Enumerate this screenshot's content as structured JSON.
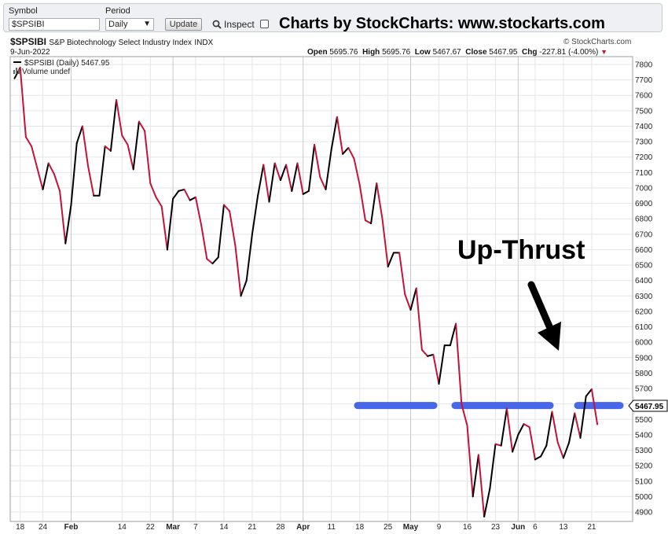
{
  "toolbar": {
    "symbol_label": "Symbol",
    "symbol_value": "$SPSIBI",
    "period_label": "Period",
    "period_value": "Daily",
    "update_label": "Update",
    "inspect_label": "Inspect",
    "banner": "Charts by StockCharts:  www.stockarts.com"
  },
  "header": {
    "ticker": "$SPSIBI",
    "name": "S&P Biotechnology Select Industry Index",
    "exchange": "INDX",
    "date": "9-Jun-2022",
    "copyright": "© StockCharts.com",
    "open_label": "Open",
    "open": "5695.76",
    "high_label": "High",
    "high": "5695.76",
    "low_label": "Low",
    "low": "5467.67",
    "close_label": "Close",
    "close": "5467.95",
    "chg_label": "Chg",
    "chg": "-227.81 (-4.00%)",
    "legend_series": "$SPSIBI (Daily) 5467.95",
    "legend_volume": "Volume undef"
  },
  "chart_data": {
    "type": "line",
    "title": "$SPSIBI S&P Biotechnology Select Industry Index INDX",
    "ylim": [
      4850,
      7850
    ],
    "yticks": [
      "7800",
      "7700",
      "7600",
      "7500",
      "7400",
      "7300",
      "7200",
      "7100",
      "7000",
      "6900",
      "6800",
      "6700",
      "6600",
      "6500",
      "6400",
      "6300",
      "6200",
      "6100",
      "6000",
      "5900",
      "5800",
      "5700",
      "5600",
      "5500",
      "5400",
      "5300",
      "5200",
      "5100",
      "5000",
      "4900"
    ],
    "xticks": [
      {
        "label": "18",
        "index": 1,
        "month": false
      },
      {
        "label": "24",
        "index": 5,
        "month": false
      },
      {
        "label": "Feb",
        "index": 10,
        "month": true
      },
      {
        "label": "14",
        "index": 19,
        "month": false
      },
      {
        "label": "22",
        "index": 24,
        "month": false
      },
      {
        "label": "Mar",
        "index": 28,
        "month": true
      },
      {
        "label": "7",
        "index": 32,
        "month": false
      },
      {
        "label": "14",
        "index": 37,
        "month": false
      },
      {
        "label": "21",
        "index": 42,
        "month": false
      },
      {
        "label": "28",
        "index": 47,
        "month": false
      },
      {
        "label": "Apr",
        "index": 51,
        "month": true
      },
      {
        "label": "11",
        "index": 56,
        "month": false
      },
      {
        "label": "18",
        "index": 61,
        "month": false
      },
      {
        "label": "25",
        "index": 66,
        "month": false
      },
      {
        "label": "May",
        "index": 70,
        "month": true
      },
      {
        "label": "9",
        "index": 75,
        "month": false
      },
      {
        "label": "16",
        "index": 80,
        "month": false
      },
      {
        "label": "23",
        "index": 85,
        "month": false
      },
      {
        "label": "Jun",
        "index": 89,
        "month": true
      },
      {
        "label": "6",
        "index": 92,
        "month": false
      },
      {
        "label": "13",
        "index": 97,
        "month": false
      },
      {
        "label": "21",
        "index": 102,
        "month": false
      }
    ],
    "x_slots": 106,
    "series": [
      {
        "values": [
          7710,
          7780,
          7330,
          7270,
          7130,
          6990,
          7160,
          7090,
          6980,
          6640,
          6890,
          7290,
          7400,
          7140,
          6950,
          6950,
          7270,
          7240,
          7570,
          7340,
          7280,
          7120,
          7430,
          7370,
          7030,
          6940,
          6880,
          6600,
          6930,
          6980,
          6990,
          6920,
          6940,
          6760,
          6540,
          6510,
          6550,
          6890,
          6850,
          6630,
          6300,
          6400,
          6700,
          6950,
          7150,
          6910,
          7160,
          7050,
          7150,
          6980,
          7160,
          6960,
          6980,
          7280,
          7070,
          6990,
          7250,
          7460,
          7220,
          7260,
          7190,
          7020,
          6790,
          6770,
          7030,
          6800,
          6490,
          6580,
          6580,
          6310,
          6210,
          6350,
          5950,
          5910,
          5920,
          5730,
          5980,
          5980,
          6120,
          5600,
          5460,
          5000,
          5270,
          4870,
          5050,
          5340,
          5330,
          5570,
          5290,
          5400,
          5470,
          5450,
          5240,
          5260,
          5330,
          5550,
          5350,
          5250,
          5350,
          5540,
          5380,
          5650,
          5695.76,
          5467.95
        ],
        "offset": 0
      }
    ],
    "annotations": [
      {
        "text": "Up-Thrust"
      }
    ],
    "resistance_level": 5590,
    "colors": {
      "up": "#000000",
      "down": "#c4123a",
      "resistance": "#4866e8",
      "grid": "#e3e5e8",
      "month_grid": "#c5c8cc",
      "close_tag": "#000000"
    },
    "grid": true,
    "close_value": "5467.95"
  }
}
